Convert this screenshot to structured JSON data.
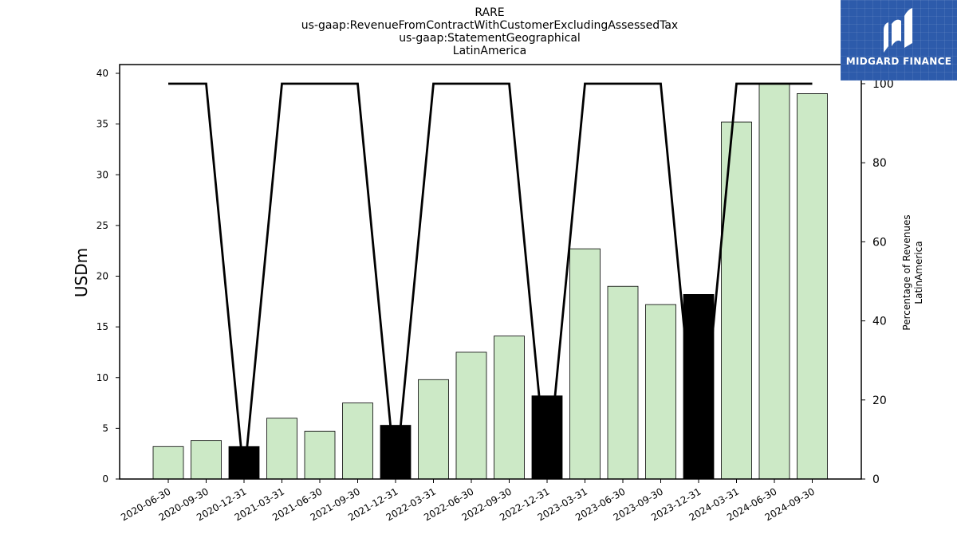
{
  "chart_data": {
    "type": "bar",
    "title_lines": [
      "RARE",
      "us-gaap:RevenueFromContractWithCustomerExcludingAssessedTax",
      "us-gaap:StatementGeographical",
      "LatinAmerica"
    ],
    "ylabel": "USDm",
    "ylabel_right": [
      "Percentage of Revenues",
      "LatinAmerica"
    ],
    "ylim": [
      0,
      40
    ],
    "ylim_right": [
      0,
      100
    ],
    "yticks": [
      0,
      5,
      10,
      15,
      20,
      25,
      30,
      35,
      40
    ],
    "yticks_right": [
      0,
      20,
      40,
      60,
      80,
      100
    ],
    "categories": [
      "2020-06-30",
      "2020-09-30",
      "2020-12-31",
      "2021-03-31",
      "2021-06-30",
      "2021-09-30",
      "2021-12-31",
      "2022-03-31",
      "2022-06-30",
      "2022-09-30",
      "2022-12-31",
      "2023-03-31",
      "2023-06-30",
      "2023-09-30",
      "2023-12-31",
      "2024-03-31",
      "2024-06-30",
      "2024-09-30"
    ],
    "series": [
      {
        "axis": "left",
        "kind": "bar",
        "values": [
          3.2,
          3.8,
          3.2,
          6.0,
          4.7,
          7.5,
          5.3,
          9.8,
          12.5,
          14.1,
          8.2,
          22.7,
          19.0,
          17.2,
          18.2,
          35.2,
          39.0,
          38.0
        ],
        "highlight": [
          false,
          false,
          true,
          false,
          false,
          false,
          true,
          false,
          false,
          false,
          true,
          false,
          false,
          false,
          true,
          false,
          false,
          false
        ]
      },
      {
        "axis": "right",
        "kind": "line",
        "values": [
          100,
          100,
          0,
          100,
          100,
          100,
          0,
          100,
          100,
          100,
          0,
          100,
          100,
          100,
          0,
          100,
          100,
          100
        ]
      }
    ],
    "colors": {
      "bar": "#cce9c6",
      "bar_highlight": "#000000",
      "line": "#000000",
      "edge": "#000000"
    }
  },
  "logo": {
    "text": "MIDGARD FINANCE",
    "background": "#2d5bab"
  }
}
